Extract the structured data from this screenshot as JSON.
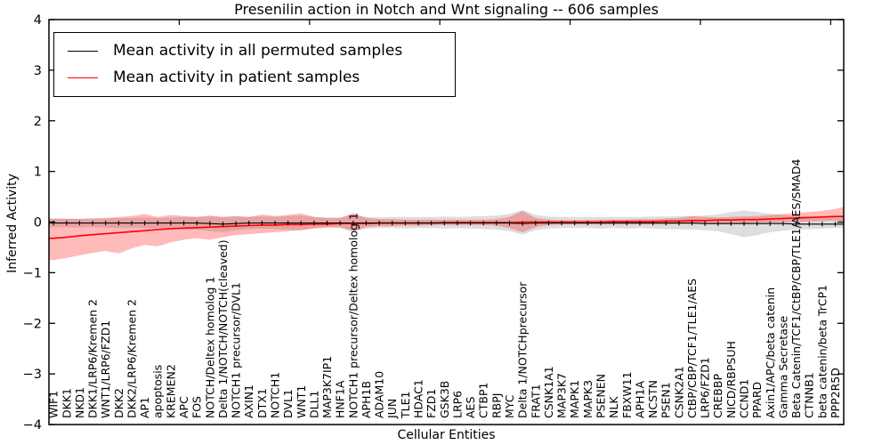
{
  "title": "Presenilin action in Notch and Wnt signaling -- 606 samples",
  "axes": {
    "ylabel": "Inferred Activity",
    "xlabel": "Cellular Entities",
    "yticks": [
      "4",
      "3",
      "2",
      "1",
      "0",
      "−1",
      "−2",
      "−3",
      "−4"
    ]
  },
  "legend": {
    "items": [
      {
        "label": "Mean activity in all permuted samples",
        "color": "#000000"
      },
      {
        "label": "Mean activity in patient samples",
        "color": "#ff0000"
      }
    ]
  },
  "colors": {
    "permuted_line": "#000000",
    "patient_line": "#ff0000",
    "permuted_band": "rgba(0,0,0,0.13)",
    "patient_band": "rgba(255,0,0,0.27)",
    "frame": "#000000",
    "background": "#ffffff"
  },
  "chart_data": {
    "type": "line",
    "title": "Presenilin action in Notch and Wnt signaling -- 606 samples",
    "xlabel": "Cellular Entities",
    "ylabel": "Inferred Activity",
    "ylim": [
      -4,
      4
    ],
    "grid": false,
    "legend_position": "upper left",
    "x_top_tick_every": 10,
    "categories": [
      "WIF1",
      "DKK1",
      "NKD1",
      "DKK1/LRP6/Kremen 2",
      "WNT1/LRP6/FZD1",
      "DKK2",
      "DKK2/LRP6/Kremen 2",
      "AP1",
      "apoptosis",
      "KREMEN2",
      "APC",
      "FOS",
      "NOTCH/Deltex homolog 1",
      "Delta 1/NOTCH/NOTCH(cleaved)",
      "NOTCH1 precursor/DVL1",
      "AXIN1",
      "DTX1",
      "NOTCH1",
      "DVL1",
      "WNT1",
      "DLL1",
      "MAP3K7IP1",
      "HNF1A",
      "NOTCH1 precursor/Deltex homolog 1",
      "APH1B",
      "ADAM10",
      "JUN",
      "TLE1",
      "HDAC1",
      "FZD1",
      "GSK3B",
      "LRP6",
      "AES",
      "CTBP1",
      "RBPJ",
      "MYC",
      "Delta 1/NOTCHprecursor",
      "FRAT1",
      "CSNK1A1",
      "MAP3K7",
      "MAPK1",
      "MAPK3",
      "PSENEN",
      "NLK",
      "FBXW11",
      "APH1A",
      "NCSTN",
      "PSEN1",
      "CSNK2A1",
      "CtBP/CBP/TCF1/TLE1/AES",
      "LRP6/FZD1",
      "CREBBP",
      "NICD/RBPSUH",
      "CCND1",
      "PPARD",
      "Axin1/APC/beta catenin",
      "Gamma Secretase",
      "Beta Catenin/TCF1/CtBP/CBP/TLE1/AES/SMAD4",
      "CTNNB1",
      "beta catenin/beta TrCP1",
      "PPP2R5D"
    ],
    "series": [
      {
        "name": "Mean activity in all permuted samples",
        "color": "#000000",
        "band_color": "rgba(0,0,0,0.13)",
        "values": [
          -0.02,
          -0.02,
          -0.02,
          -0.02,
          -0.02,
          -0.02,
          -0.02,
          -0.02,
          -0.02,
          -0.02,
          -0.02,
          -0.02,
          -0.03,
          -0.04,
          -0.03,
          -0.02,
          -0.02,
          -0.02,
          -0.02,
          -0.02,
          -0.02,
          -0.02,
          -0.02,
          -0.02,
          -0.02,
          -0.02,
          -0.02,
          -0.02,
          -0.02,
          -0.02,
          -0.02,
          -0.02,
          -0.02,
          -0.02,
          -0.02,
          -0.02,
          -0.03,
          -0.02,
          -0.02,
          -0.02,
          -0.02,
          -0.02,
          -0.02,
          -0.02,
          -0.02,
          -0.02,
          -0.02,
          -0.02,
          -0.02,
          -0.02,
          -0.03,
          -0.03,
          -0.03,
          -0.03,
          -0.03,
          -0.03,
          -0.03,
          -0.04,
          -0.04,
          -0.04,
          -0.04
        ],
        "band_upper": [
          0.06,
          0.06,
          0.07,
          0.07,
          0.07,
          0.08,
          0.08,
          0.09,
          0.08,
          0.09,
          0.1,
          0.1,
          0.11,
          0.1,
          0.11,
          0.1,
          0.11,
          0.1,
          0.12,
          0.13,
          0.1,
          0.09,
          0.09,
          0.14,
          0.1,
          0.09,
          0.1,
          0.1,
          0.1,
          0.1,
          0.11,
          0.1,
          0.11,
          0.12,
          0.13,
          0.16,
          0.24,
          0.14,
          0.11,
          0.1,
          0.1,
          0.1,
          0.1,
          0.1,
          0.1,
          0.1,
          0.11,
          0.11,
          0.12,
          0.12,
          0.13,
          0.15,
          0.2,
          0.23,
          0.2,
          0.16,
          0.14,
          0.12,
          0.11,
          0.11,
          0.1
        ],
        "band_lower": [
          -0.1,
          -0.1,
          -0.11,
          -0.1,
          -0.11,
          -0.12,
          -0.11,
          -0.12,
          -0.13,
          -0.12,
          -0.14,
          -0.15,
          -0.18,
          -0.2,
          -0.16,
          -0.14,
          -0.13,
          -0.14,
          -0.15,
          -0.16,
          -0.13,
          -0.12,
          -0.12,
          -0.19,
          -0.13,
          -0.12,
          -0.12,
          -0.13,
          -0.12,
          -0.12,
          -0.13,
          -0.12,
          -0.13,
          -0.14,
          -0.15,
          -0.18,
          -0.25,
          -0.16,
          -0.13,
          -0.12,
          -0.12,
          -0.12,
          -0.13,
          -0.12,
          -0.13,
          -0.12,
          -0.13,
          -0.14,
          -0.14,
          -0.15,
          -0.16,
          -0.18,
          -0.24,
          -0.3,
          -0.26,
          -0.2,
          -0.17,
          -0.15,
          -0.14,
          -0.13,
          -0.12
        ]
      },
      {
        "name": "Mean activity in patient samples",
        "color": "#ff0000",
        "band_color": "rgba(255,0,0,0.27)",
        "values": [
          -0.32,
          -0.3,
          -0.27,
          -0.25,
          -0.23,
          -0.21,
          -0.19,
          -0.17,
          -0.15,
          -0.13,
          -0.12,
          -0.11,
          -0.1,
          -0.09,
          -0.08,
          -0.07,
          -0.06,
          -0.06,
          -0.05,
          -0.05,
          -0.04,
          -0.04,
          -0.03,
          -0.03,
          -0.03,
          -0.02,
          -0.02,
          -0.02,
          -0.02,
          -0.02,
          -0.01,
          -0.01,
          -0.01,
          -0.01,
          -0.01,
          -0.01,
          0.0,
          0.0,
          0.0,
          0.0,
          0.0,
          0.0,
          0.0,
          0.01,
          0.01,
          0.01,
          0.01,
          0.02,
          0.02,
          0.03,
          0.03,
          0.04,
          0.04,
          0.05,
          0.05,
          0.06,
          0.07,
          0.08,
          0.09,
          0.1,
          0.11
        ],
        "band_upper": [
          0.07,
          0.07,
          0.06,
          0.07,
          0.08,
          0.1,
          0.12,
          0.16,
          0.1,
          0.14,
          0.12,
          0.1,
          0.13,
          0.1,
          0.12,
          0.1,
          0.15,
          0.12,
          0.14,
          0.17,
          0.1,
          0.08,
          0.08,
          0.18,
          0.08,
          0.06,
          0.06,
          0.05,
          0.05,
          0.05,
          0.05,
          0.05,
          0.05,
          0.05,
          0.06,
          0.1,
          0.22,
          0.08,
          0.05,
          0.04,
          0.04,
          0.04,
          0.05,
          0.05,
          0.05,
          0.06,
          0.06,
          0.07,
          0.08,
          0.12,
          0.1,
          0.09,
          0.1,
          0.11,
          0.12,
          0.14,
          0.16,
          0.18,
          0.2,
          0.22,
          0.26
        ],
        "band_lower": [
          -0.75,
          -0.71,
          -0.66,
          -0.61,
          -0.57,
          -0.62,
          -0.52,
          -0.45,
          -0.48,
          -0.4,
          -0.35,
          -0.32,
          -0.35,
          -0.3,
          -0.26,
          -0.24,
          -0.22,
          -0.2,
          -0.18,
          -0.16,
          -0.12,
          -0.1,
          -0.1,
          -0.18,
          -0.1,
          -0.08,
          -0.08,
          -0.07,
          -0.07,
          -0.06,
          -0.06,
          -0.06,
          -0.06,
          -0.06,
          -0.07,
          -0.12,
          -0.2,
          -0.1,
          -0.06,
          -0.05,
          -0.05,
          -0.05,
          -0.05,
          -0.05,
          -0.05,
          -0.05,
          -0.05,
          -0.05,
          -0.04,
          -0.04,
          -0.03,
          -0.03,
          -0.02,
          -0.02,
          -0.01,
          -0.01,
          0.0,
          0.0,
          0.01,
          0.02,
          0.03
        ]
      }
    ],
    "right_edge_extension": {
      "permuted_mean": -0.04,
      "permuted_upper": 0.1,
      "permuted_lower": -0.12,
      "patient_mean": 0.11,
      "patient_upper": 0.3,
      "patient_lower": 0.02
    }
  }
}
